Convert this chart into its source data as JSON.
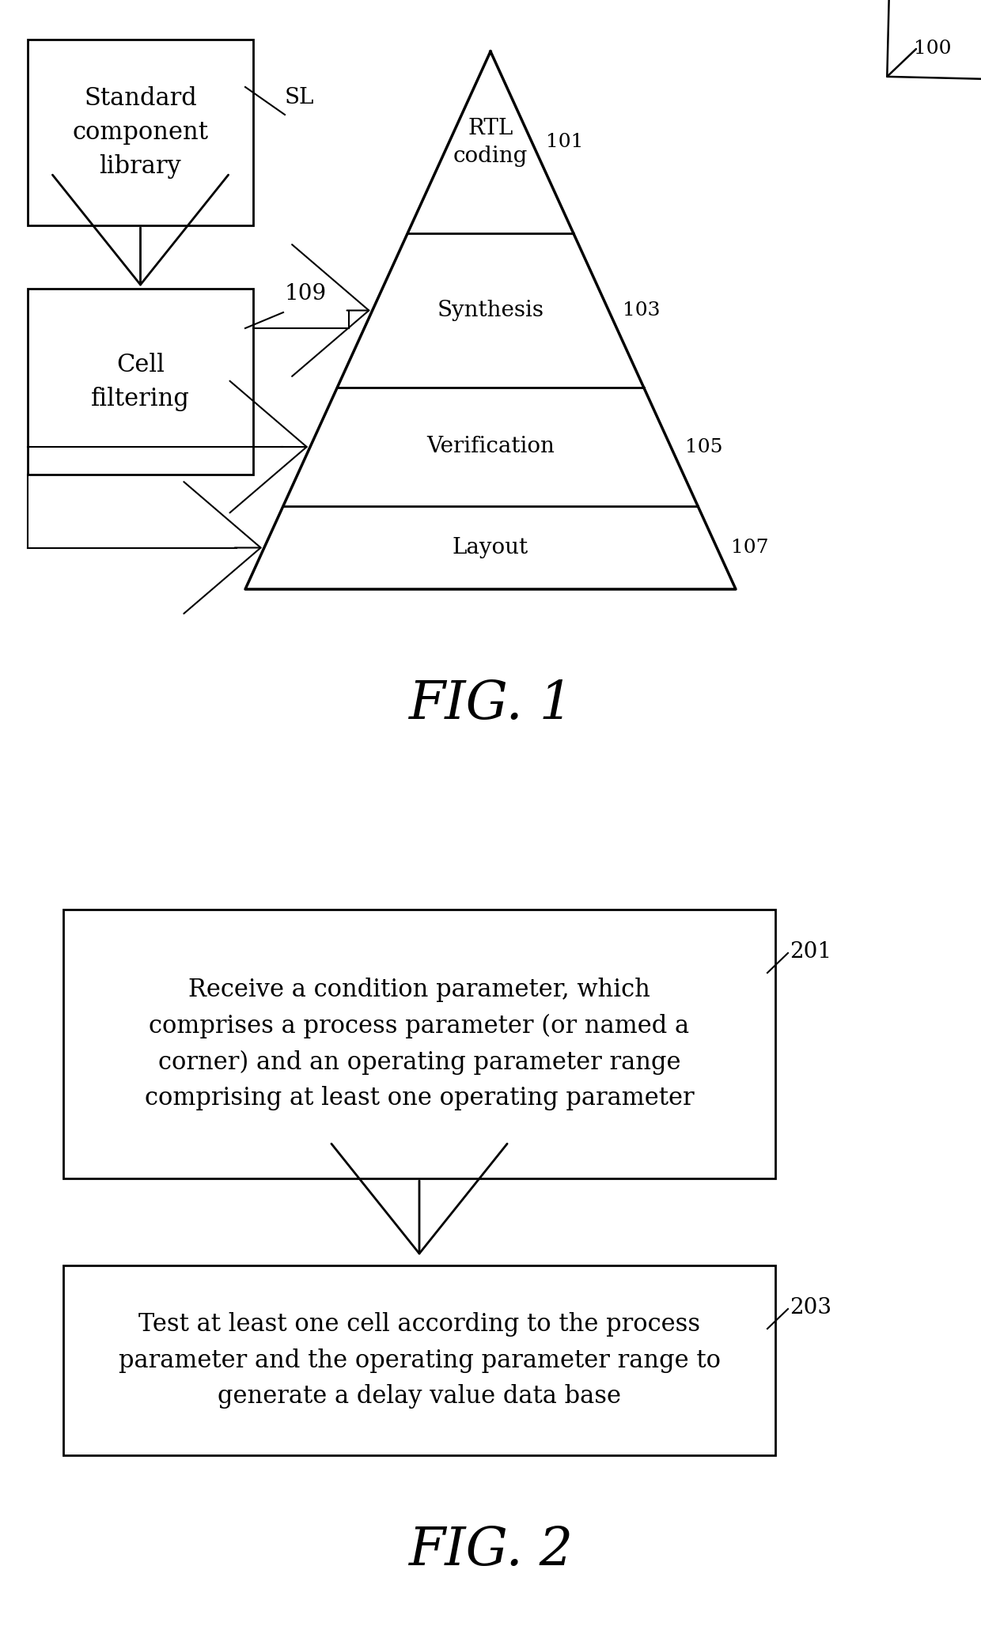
{
  "bg_color": "#ffffff",
  "fig1": {
    "title": "FIG. 1",
    "box1_text": "Standard\ncomponent\nlibrary",
    "box1_label": "SL",
    "box2_text": "Cell\nfiltering",
    "box2_label": "109",
    "ref100": "100",
    "pyramid_layers": [
      {
        "label": "RTL\ncoding",
        "ref": "101"
      },
      {
        "label": "Synthesis",
        "ref": "103"
      },
      {
        "label": "Verification",
        "ref": "105"
      },
      {
        "label": "Layout",
        "ref": "107"
      }
    ]
  },
  "fig2": {
    "title": "FIG. 2",
    "box1_text": "Receive a condition parameter, which\ncomprises a process parameter (or named a\ncorner) and an operating parameter range\ncomprising at least one operating parameter",
    "box1_label": "201",
    "box2_text": "Test at least one cell according to the process\nparameter and the operating parameter range to\ngenerate a delay value data base",
    "box2_label": "203"
  }
}
